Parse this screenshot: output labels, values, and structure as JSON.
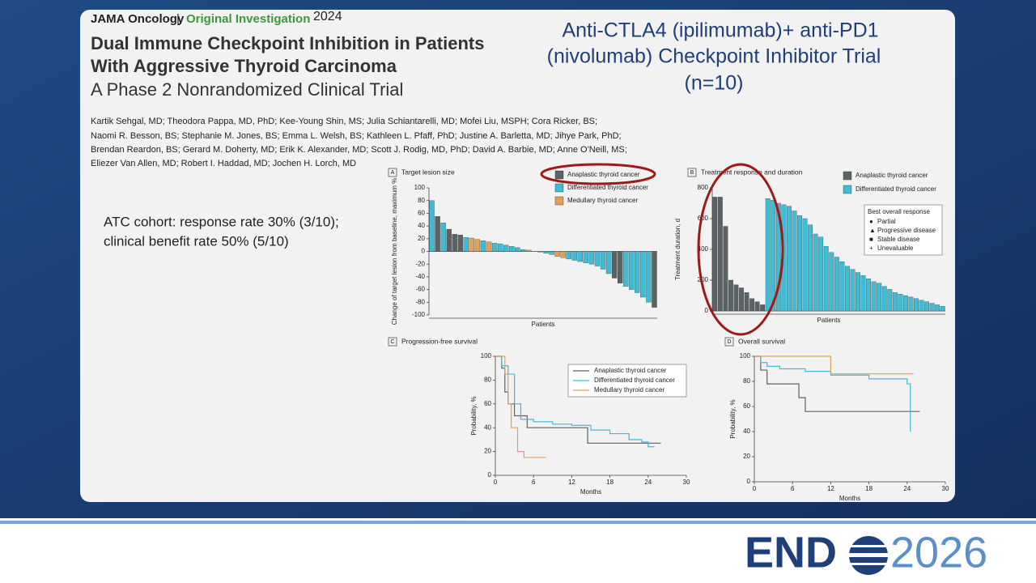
{
  "header": {
    "journal": "JAMA Oncology",
    "section": "Original Investigation",
    "year": "2024",
    "title_lines": [
      "Dual Immune Checkpoint Inhibition in Patients",
      "With Aggressive Thyroid Carcinoma"
    ],
    "subtitle": "A Phase 2 Nonrandomized Clinical Trial"
  },
  "authors": [
    "Kartik Sehgal, MD; Theodora Pappa, MD, PhD; Kee-Young Shin, MS; Julia Schiantarelli, MD; Mofei Liu, MSPH; Cora Ricker, BS;",
    "Naomi R. Besson, BS; Stephanie M. Jones, BS; Emma L. Welsh, BS; Kathleen L. Pfaff, PhD; Justine A. Barletta, MD; Jihye Park, PhD;",
    "Brendan Reardon, BS; Gerard M. Doherty, MD; Erik K. Alexander, MD; Scott J. Rodig, MD, PhD; David A. Barbie, MD; Anne O'Neill, MS;",
    "Eliezer Van Allen, MD; Robert I. Haddad, MD; Jochen H. Lorch, MD"
  ],
  "trial_title": [
    "Anti-CTLA4 (ipilimumab)+ anti-PD1",
    "(nivolumab) Checkpoint Inhibitor Trial",
    "(n=10)"
  ],
  "cohort": [
    "ATC cohort: response rate 30% (3/10);",
    "clinical benefit rate 50% (5/10)"
  ],
  "logo": {
    "left": "END",
    "right": "2026"
  },
  "chart_data": [
    {
      "type": "bar",
      "panel": "A",
      "title": "Target lesion size",
      "ylabel": "Change of target lesion from baseline, maximum %",
      "xlabel": "Patients",
      "ylim": [
        -100,
        100
      ],
      "yticks": [
        -100,
        -80,
        -60,
        -40,
        -20,
        0,
        20,
        40,
        60,
        80,
        100
      ],
      "series": [
        {
          "name": "Anaplastic thyroid cancer",
          "color": "#5a6264",
          "values": [
            null,
            55,
            null,
            35,
            27,
            26,
            null,
            null,
            null,
            null,
            null,
            null,
            null,
            null,
            null,
            null,
            null,
            null,
            null,
            null,
            null,
            null,
            null,
            null,
            null,
            null,
            null,
            null,
            null,
            null,
            null,
            null,
            -42,
            -50,
            null,
            null,
            null,
            null,
            null,
            -88
          ]
        },
        {
          "name": "Differentiated thyroid cancer",
          "color": "#3fbcd4",
          "values": [
            80,
            null,
            45,
            null,
            null,
            null,
            22,
            null,
            null,
            17,
            null,
            13,
            12,
            10,
            8,
            6,
            3,
            null,
            0,
            -1,
            -3,
            -5,
            null,
            null,
            -12,
            -14,
            -16,
            -18,
            -20,
            -23,
            -28,
            -35,
            null,
            null,
            -55,
            -60,
            -65,
            -72,
            -80,
            null
          ]
        },
        {
          "name": "Medullary thyroid cancer",
          "color": "#e0a15a",
          "values": [
            null,
            null,
            null,
            null,
            null,
            null,
            null,
            21,
            19,
            null,
            15,
            null,
            null,
            null,
            null,
            null,
            null,
            2,
            null,
            null,
            null,
            null,
            -8,
            -10,
            null,
            null,
            null,
            null,
            null,
            null,
            null,
            null,
            null,
            null,
            null,
            null,
            null,
            null,
            null,
            null
          ]
        }
      ]
    },
    {
      "type": "bar",
      "panel": "B",
      "title": "Treatment response and duration",
      "ylabel": "Treatment duration, d",
      "xlabel": "Patients",
      "ylim": [
        0,
        800
      ],
      "yticks": [
        0,
        200,
        400,
        600,
        800
      ],
      "legend_title": "Best overall response",
      "response_types": [
        "Partial",
        "Progressive disease",
        "Stable disease",
        "Unevaluable"
      ],
      "series": [
        {
          "name": "Anaplastic thyroid cancer",
          "color": "#5a6264",
          "values": [
            740,
            740,
            550,
            200,
            170,
            150,
            120,
            80,
            60,
            40,
            null,
            null,
            null,
            null,
            null,
            null,
            null,
            null,
            null,
            null,
            null,
            null,
            null,
            null,
            null,
            null,
            null,
            null,
            null,
            null,
            null,
            null,
            null,
            null,
            null,
            null,
            null,
            null,
            null,
            null,
            null,
            null,
            null,
            null
          ]
        },
        {
          "name": "Differentiated thyroid cancer",
          "color": "#3fbcd4",
          "values": [
            null,
            null,
            null,
            null,
            null,
            null,
            null,
            null,
            null,
            null,
            730,
            720,
            700,
            690,
            680,
            650,
            620,
            600,
            560,
            500,
            480,
            420,
            380,
            350,
            320,
            290,
            270,
            250,
            230,
            210,
            190,
            180,
            160,
            140,
            120,
            110,
            100,
            90,
            80,
            70,
            60,
            50,
            40,
            30
          ]
        }
      ]
    },
    {
      "type": "line",
      "step": true,
      "panel": "C",
      "title": "Progression-free survival",
      "ylabel": "Probability, %",
      "xlabel": "Months",
      "xlim": [
        0,
        30
      ],
      "xticks": [
        0,
        6,
        12,
        18,
        24,
        30
      ],
      "ylim": [
        0,
        100
      ],
      "yticks": [
        0,
        20,
        40,
        60,
        80,
        100
      ],
      "series": [
        {
          "name": "Anaplastic thyroid cancer",
          "color": "#5a6264",
          "x": [
            0,
            1,
            1.5,
            2,
            3,
            5,
            14.5,
            26
          ],
          "values": [
            100,
            90,
            70,
            60,
            50,
            40,
            27,
            27
          ]
        },
        {
          "name": "Differentiated thyroid cancer",
          "color": "#3fbcd4",
          "x": [
            0,
            1,
            2,
            3,
            4,
            6,
            9,
            12,
            15,
            18,
            21,
            23,
            24,
            25
          ],
          "values": [
            100,
            92,
            85,
            60,
            47,
            45,
            43,
            42,
            38,
            35,
            30,
            28,
            24,
            24
          ]
        },
        {
          "name": "Medullary thyroid cancer",
          "color": "#e0a15a",
          "x": [
            0,
            1.5,
            2,
            2.5,
            3.5,
            4.5,
            8
          ],
          "values": [
            100,
            85,
            60,
            40,
            20,
            15,
            15
          ]
        }
      ]
    },
    {
      "type": "line",
      "step": true,
      "panel": "D",
      "title": "Overall survival",
      "ylabel": "Probability, %",
      "xlabel": "Months",
      "xlim": [
        0,
        30
      ],
      "xticks": [
        0,
        6,
        12,
        18,
        24,
        30
      ],
      "ylim": [
        0,
        100
      ],
      "yticks": [
        0,
        20,
        40,
        60,
        80,
        100
      ],
      "series": [
        {
          "name": "Anaplastic thyroid cancer",
          "color": "#5a6264",
          "x": [
            0,
            1,
            2,
            7,
            8,
            26
          ],
          "values": [
            100,
            89,
            78,
            67,
            56,
            56
          ]
        },
        {
          "name": "Differentiated thyroid cancer",
          "color": "#3fbcd4",
          "x": [
            0,
            1,
            2,
            4,
            8,
            12,
            18,
            24,
            24.5
          ],
          "values": [
            100,
            95,
            92,
            90,
            88,
            85,
            82,
            78,
            40
          ]
        },
        {
          "name": "Medullary thyroid cancer",
          "color": "#e0a15a",
          "x": [
            0,
            12,
            25
          ],
          "values": [
            100,
            86,
            86
          ]
        }
      ]
    }
  ]
}
